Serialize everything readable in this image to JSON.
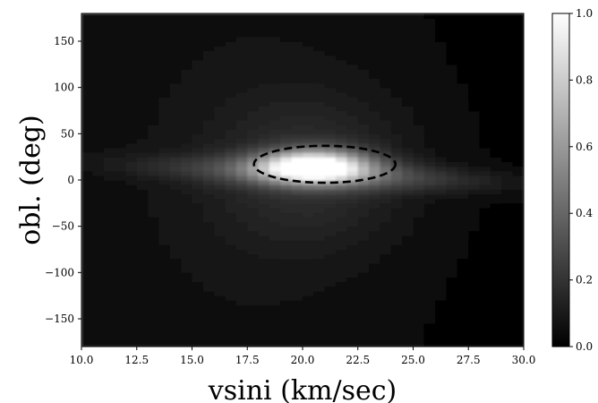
{
  "chart_data": {
    "type": "heatmap",
    "title": "",
    "xlabel": "vsini (km/sec)",
    "ylabel": "obl. (deg)",
    "xlim": [
      10.0,
      30.0
    ],
    "ylim": [
      -180,
      180
    ],
    "x_ticks": [
      "10.0",
      "12.5",
      "15.0",
      "17.5",
      "20.0",
      "22.5",
      "25.0",
      "27.5",
      "30.0"
    ],
    "y_ticks": [
      "150",
      "100",
      "50",
      "0",
      "−50",
      "−100",
      "−150"
    ],
    "colorbar": {
      "colormap": "gray",
      "min": 0.0,
      "max": 1.0,
      "ticks": [
        "0.0",
        "0.2",
        "0.4",
        "0.6",
        "0.8",
        "1.0"
      ]
    },
    "peak": {
      "vsini": 20.5,
      "obl": 15,
      "value": 1.0
    },
    "contour_ellipse": {
      "style": "dashed",
      "color": "#000000",
      "center": {
        "vsini": 21.0,
        "obl": 16
      },
      "vsini_range": [
        17.8,
        24.2
      ],
      "obl_range": [
        -3,
        37
      ]
    },
    "grid": false,
    "legend": "none"
  }
}
